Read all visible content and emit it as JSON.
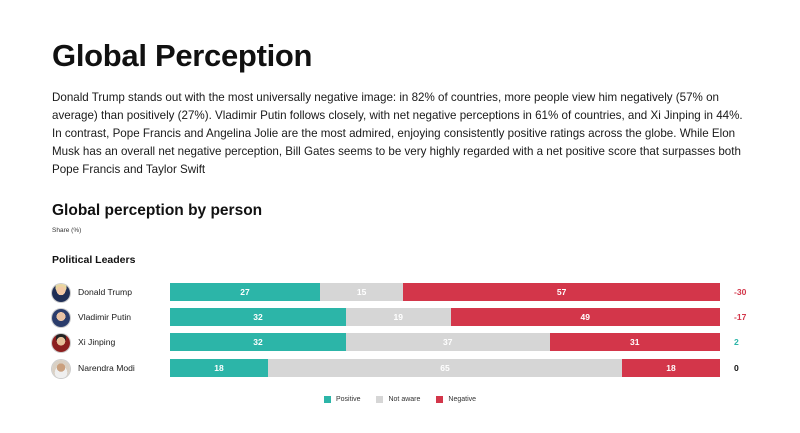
{
  "page": {
    "title": "Global Perception",
    "intro": "Donald Trump stands out with the most universally negative image: in 82% of countries, more people view him negatively (57% on average) than positively (27%). Vladimir Putin follows closely, with net negative perceptions in 61% of countries, and Xi Jinping in 44%. In contrast, Pope Francis and Angelina Jolie are the most admired, enjoying consistently positive ratings across the globe. While Elon Musk has an overall net negative perception, Bill Gates seems to be very highly regarded with a net positive score that surpasses both Pope Francis and Taylor Swift"
  },
  "colors": {
    "positive": "#2cb5a8",
    "not_aware": "#d6d6d6",
    "negative": "#d3364a",
    "net_negative": "#d3364a",
    "net_positive": "#2cb5a8",
    "net_zero": "#111111"
  },
  "chart_data": {
    "type": "bar",
    "orientation": "horizontal",
    "stacked": true,
    "title": "Global perception by person",
    "subtitle": "Share (%)",
    "group": "Political Leaders",
    "categories": [
      "Donald Trump",
      "Vladimir Putin",
      "Xi Jinping",
      "Narendra Modi"
    ],
    "avatars": [
      "trump-avatar-icon",
      "putin-avatar-icon",
      "xi-avatar-icon",
      "modi-avatar-icon"
    ],
    "series": [
      {
        "name": "Positive",
        "values": [
          27,
          32,
          32,
          18
        ]
      },
      {
        "name": "Not aware",
        "values": [
          15,
          19,
          37,
          65
        ]
      },
      {
        "name": "Negative",
        "values": [
          57,
          49,
          31,
          18
        ]
      }
    ],
    "net": [
      "-30",
      "-17",
      "2",
      "0"
    ],
    "xlim": [
      0,
      100
    ],
    "legend_position": "bottom-center",
    "grid": false
  }
}
